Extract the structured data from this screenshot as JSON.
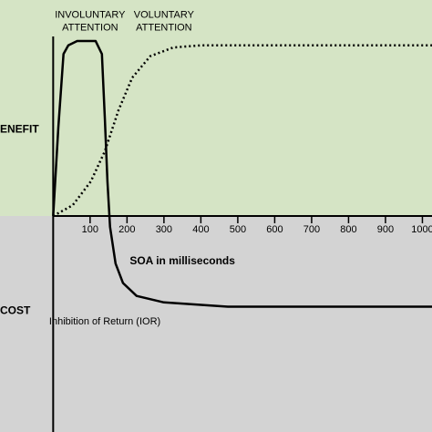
{
  "chart_data": {
    "type": "line",
    "xlabel": "SOA in milliseconds",
    "region_labels": [
      "ENEFIT",
      "COST"
    ],
    "annotations": [
      {
        "lines": [
          "INVOLUNTARY",
          "ATTENTION"
        ],
        "x": 100,
        "y": 0.93
      },
      {
        "lines": [
          "VOLUNTARY",
          "ATTENTION"
        ],
        "x": 300,
        "y": 0.93
      },
      {
        "lines": [
          "Inhibition of Return (IOR)"
        ],
        "x": 140,
        "y": -0.49
      }
    ],
    "xlim": [
      -144,
      1026
    ],
    "ylim": [
      -1,
      1
    ],
    "xticks": [
      100,
      200,
      300,
      400,
      500,
      600,
      700,
      800,
      900,
      1000
    ],
    "series": [
      {
        "color": "#000000",
        "dash": "solid",
        "x": [
          0,
          14,
          28,
          41,
          65,
          115,
          132,
          140,
          147,
          154,
          169,
          189,
          226,
          300,
          473,
          1026
        ],
        "values": [
          0,
          0.41,
          0.75,
          0.79,
          0.81,
          0.81,
          0.75,
          0.45,
          0.16,
          -0.05,
          -0.22,
          -0.31,
          -0.37,
          -0.4,
          -0.42,
          -0.42
        ]
      },
      {
        "color": "#000000",
        "dash": "dotted",
        "x": [
          0,
          53,
          102,
          140,
          177,
          214,
          263,
          325,
          399,
          1026
        ],
        "values": [
          0,
          0.05,
          0.16,
          0.3,
          0.49,
          0.64,
          0.74,
          0.78,
          0.79,
          0.79
        ]
      }
    ]
  }
}
